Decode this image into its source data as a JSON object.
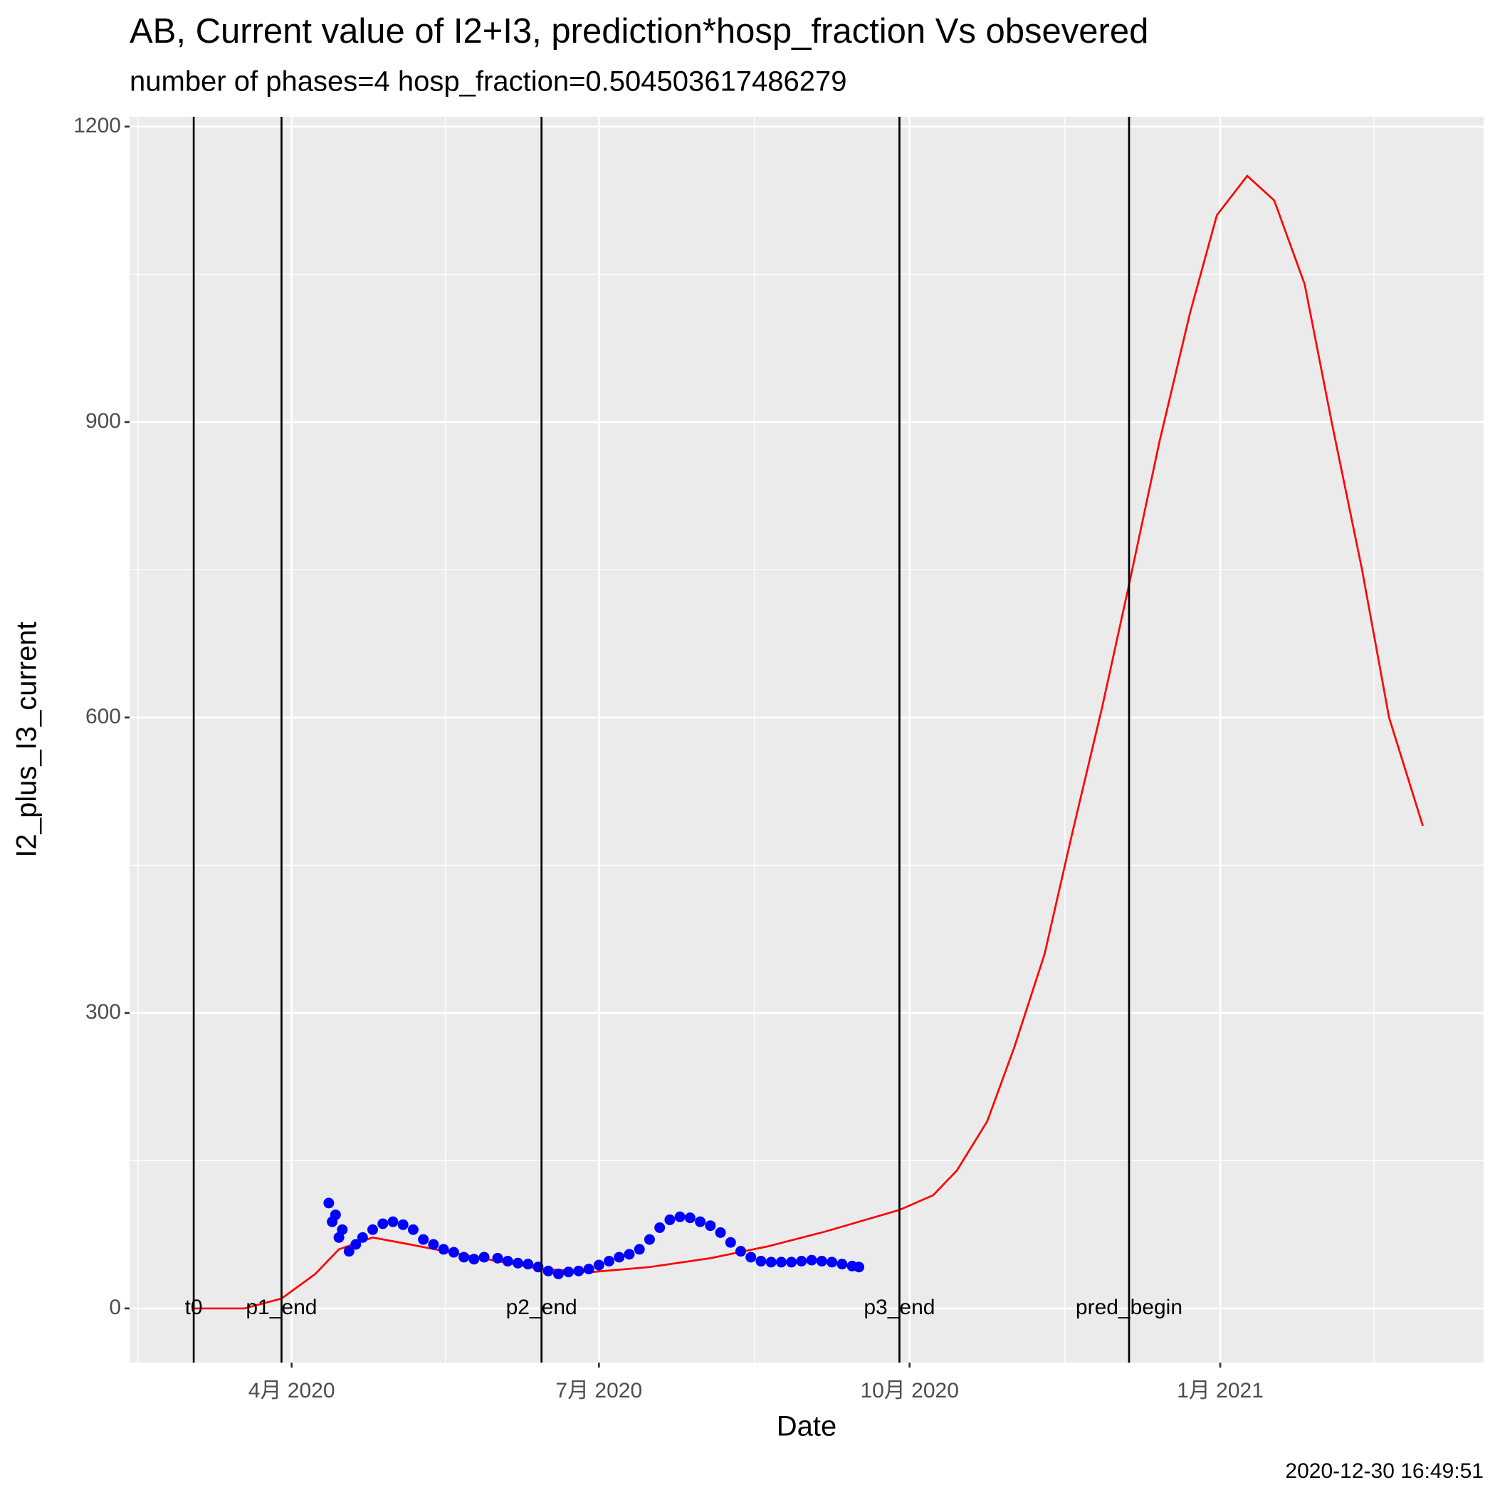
{
  "chart_data": {
    "type": "line+scatter",
    "title": "AB, Current value of I2+I3, prediction*hosp_fraction Vs obsevered",
    "subtitle": "number of phases=4   hosp_fraction=0.504503617486279",
    "x_label": "Date",
    "y_label": "I2_plus_I3_current",
    "caption": "2020-12-30 16:49:51",
    "xlim": [
      "2020-02-13",
      "2021-03-20"
    ],
    "xticks": [
      {
        "value": "2020-04-01",
        "label": "4月 2020"
      },
      {
        "value": "2020-07-01",
        "label": "7月 2020"
      },
      {
        "value": "2020-10-01",
        "label": "10月 2020"
      },
      {
        "value": "2021-01-01",
        "label": "1月 2021"
      }
    ],
    "ylim": [
      -55,
      1210
    ],
    "yticks": [
      0,
      300,
      600,
      900,
      1200
    ],
    "grid": true,
    "vlines": [
      {
        "name": "t0",
        "x": "2020-03-03"
      },
      {
        "name": "p1_end",
        "x": "2020-03-29"
      },
      {
        "name": "p2_end",
        "x": "2020-06-14"
      },
      {
        "name": "p3_end",
        "x": "2020-09-28"
      },
      {
        "name": "pred_begin",
        "x": "2020-12-05"
      }
    ],
    "series": [
      {
        "kind": "line",
        "color": "#ff0000",
        "x": [
          "2020-03-03",
          "2020-03-18",
          "2020-03-29",
          "2020-04-08",
          "2020-04-15",
          "2020-04-25",
          "2020-05-06",
          "2020-05-18",
          "2020-06-01",
          "2020-06-14",
          "2020-06-29",
          "2020-07-16",
          "2020-08-03",
          "2020-08-20",
          "2020-09-06",
          "2020-09-28",
          "2020-10-08",
          "2020-10-15",
          "2020-10-24",
          "2020-11-01",
          "2020-11-10",
          "2020-11-18",
          "2020-11-27",
          "2020-12-05",
          "2020-12-14",
          "2020-12-23",
          "2020-12-31",
          "2021-01-09",
          "2021-01-17",
          "2021-01-26",
          "2021-02-03",
          "2021-02-12",
          "2021-02-20",
          "2021-03-02"
        ],
        "values": [
          0,
          0,
          10,
          35,
          60,
          72,
          65,
          57,
          48,
          40,
          37,
          42,
          51,
          63,
          78,
          100,
          115,
          140,
          190,
          265,
          360,
          480,
          610,
          735,
          880,
          1010,
          1110,
          1150,
          1125,
          1040,
          900,
          750,
          600,
          490
        ]
      },
      {
        "kind": "scatter",
        "color": "#0000ff",
        "x": [
          "2020-04-12",
          "2020-04-13",
          "2020-04-14",
          "2020-04-15",
          "2020-04-16",
          "2020-04-18",
          "2020-04-20",
          "2020-04-22",
          "2020-04-25",
          "2020-04-28",
          "2020-05-01",
          "2020-05-04",
          "2020-05-07",
          "2020-05-10",
          "2020-05-13",
          "2020-05-16",
          "2020-05-19",
          "2020-05-22",
          "2020-05-25",
          "2020-05-28",
          "2020-06-01",
          "2020-06-04",
          "2020-06-07",
          "2020-06-10",
          "2020-06-13",
          "2020-06-16",
          "2020-06-19",
          "2020-06-22",
          "2020-06-25",
          "2020-06-28",
          "2020-07-01",
          "2020-07-04",
          "2020-07-07",
          "2020-07-10",
          "2020-07-13",
          "2020-07-16",
          "2020-07-19",
          "2020-07-22",
          "2020-07-25",
          "2020-07-28",
          "2020-07-31",
          "2020-08-03",
          "2020-08-06",
          "2020-08-09",
          "2020-08-12",
          "2020-08-15",
          "2020-08-18",
          "2020-08-21",
          "2020-08-24",
          "2020-08-27",
          "2020-08-30",
          "2020-09-02",
          "2020-09-05",
          "2020-09-08",
          "2020-09-11",
          "2020-09-14",
          "2020-09-16"
        ],
        "values": [
          107,
          88,
          95,
          72,
          80,
          58,
          65,
          72,
          80,
          86,
          88,
          85,
          80,
          70,
          65,
          60,
          57,
          52,
          50,
          52,
          51,
          48,
          46,
          45,
          42,
          38,
          35,
          37,
          38,
          40,
          44,
          48,
          52,
          55,
          60,
          70,
          82,
          90,
          93,
          92,
          88,
          84,
          77,
          67,
          58,
          52,
          48,
          47,
          47,
          47,
          48,
          49,
          48,
          47,
          45,
          43,
          42
        ]
      }
    ]
  }
}
